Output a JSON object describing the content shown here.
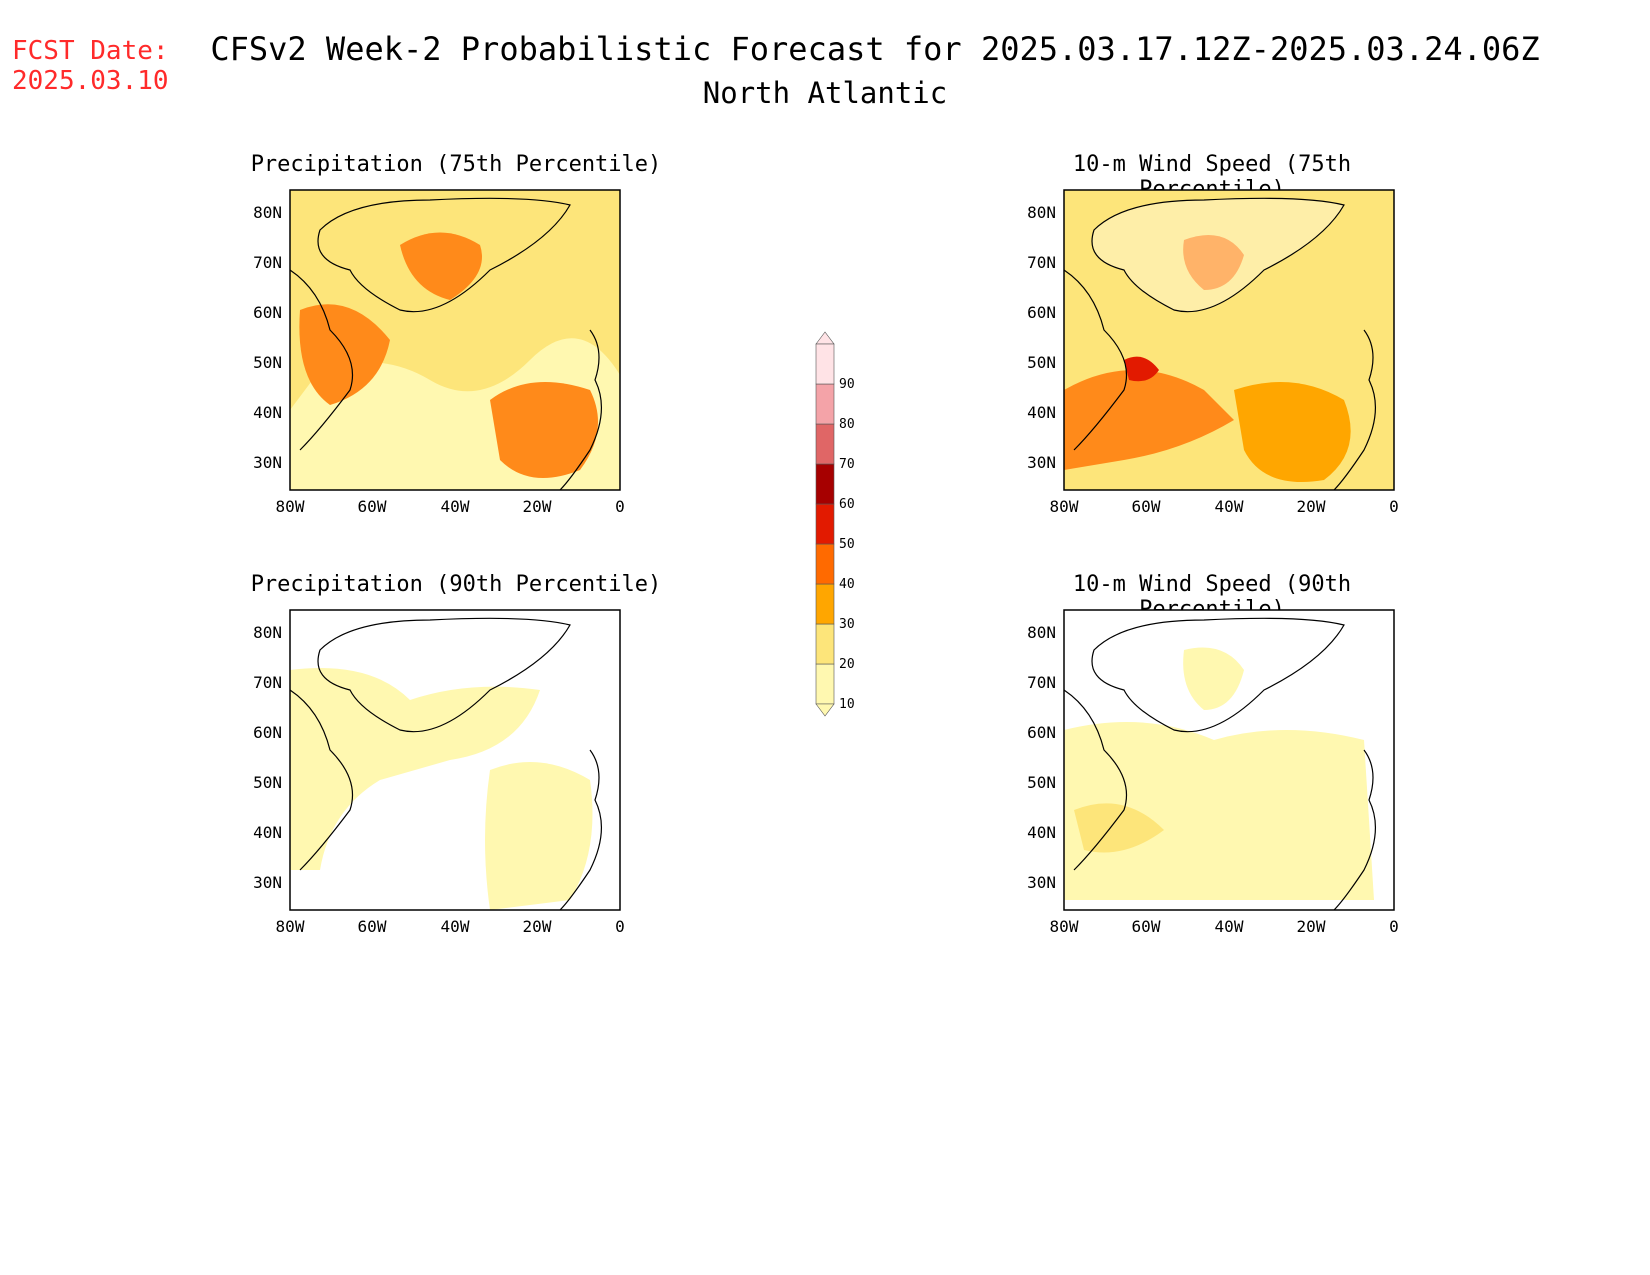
{
  "header": {
    "fcst_label": "FCST Date:",
    "fcst_date": "2025.03.10",
    "title": "CFSv2 Week-2 Probabilistic Forecast for 2025.03.17.12Z-2025.03.24.06Z",
    "subtitle": "North Atlantic"
  },
  "panels": [
    {
      "title": "Precipitation (75th Percentile)",
      "fill_level": "high"
    },
    {
      "title": "10-m Wind Speed (75th Percentile)",
      "fill_level": "high"
    },
    {
      "title": "Precipitation (90th Percentile)",
      "fill_level": "low"
    },
    {
      "title": "10-m Wind Speed (90th Percentile)",
      "fill_level": "low"
    }
  ],
  "axes": {
    "lat_labels": [
      "80N",
      "70N",
      "60N",
      "50N",
      "40N",
      "30N"
    ],
    "lon_labels": [
      "80W",
      "60W",
      "40W",
      "20W",
      "0"
    ]
  },
  "colorbar": {
    "levels": [
      "10",
      "20",
      "30",
      "40",
      "50",
      "60",
      "70",
      "80",
      "90"
    ],
    "colors": [
      "#fff8b0",
      "#fde57a",
      "#ffa600",
      "#ff6a00",
      "#e21a00",
      "#a60000",
      "#e06666",
      "#f4a3a8",
      "#ffe3e6"
    ]
  }
}
